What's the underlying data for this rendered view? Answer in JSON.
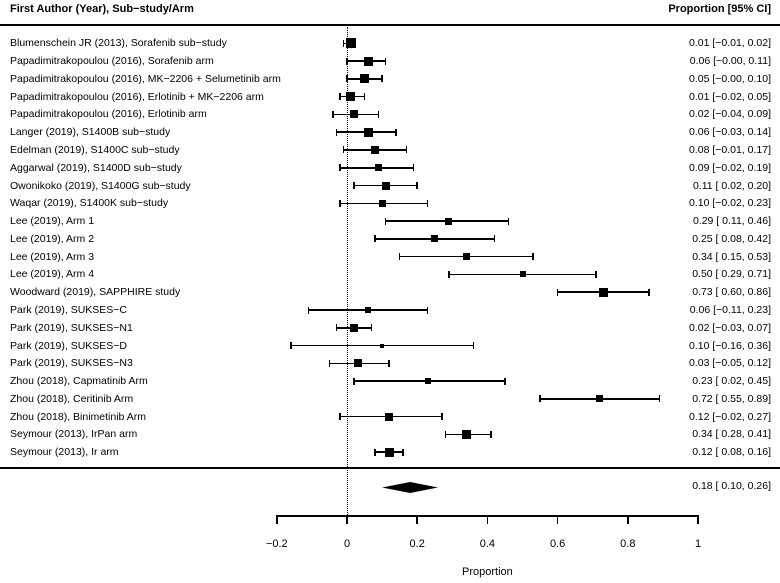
{
  "header": {
    "left": "First Author (Year), Sub−study/Arm",
    "right": "Proportion [95% CI]"
  },
  "colors": {
    "foreground": "#000000",
    "background": "#ffffff"
  },
  "chart_data": {
    "type": "forest",
    "title": "",
    "xlabel": "Proportion",
    "xlim": [
      -0.2,
      1
    ],
    "x_ticks": [
      -0.2,
      0,
      0.2,
      0.4,
      0.6,
      0.8,
      1
    ],
    "x_tick_labels": [
      "−0.2",
      "0",
      "0.2",
      "0.4",
      "0.6",
      "0.8",
      "1"
    ],
    "zero_reference_line": 0,
    "grid": false,
    "studies": [
      {
        "label": "Blumenschein JR (2013), Sorafenib sub−study",
        "est": 0.01,
        "lo": -0.01,
        "hi": 0.02,
        "text": "0.01 [−0.01, 0.02]",
        "size": 10
      },
      {
        "label": "Papadimitrakopoulou (2016), Sorafenib arm",
        "est": 0.06,
        "lo": 0.0,
        "hi": 0.11,
        "text": "0.06 [−0.00, 0.11]",
        "size": 9
      },
      {
        "label": "Papadimitrakopoulou (2016), MK−2206 + Selumetinib arm",
        "est": 0.05,
        "lo": 0.0,
        "hi": 0.1,
        "text": "0.05 [−0.00, 0.10]",
        "size": 9
      },
      {
        "label": "Papadimitrakopoulou (2016), Erlotinib + MK−2206 arm",
        "est": 0.01,
        "lo": -0.02,
        "hi": 0.05,
        "text": "0.01 [−0.02, 0.05]",
        "size": 9
      },
      {
        "label": "Papadimitrakopoulou (2016), Erlotinib arm",
        "est": 0.02,
        "lo": -0.04,
        "hi": 0.09,
        "text": "0.02 [−0.04, 0.09]",
        "size": 8
      },
      {
        "label": "Langer (2019), S1400B sub−study",
        "est": 0.06,
        "lo": -0.03,
        "hi": 0.14,
        "text": "0.06 [−0.03, 0.14]",
        "size": 9
      },
      {
        "label": "Edelman (2019), S1400C sub−study",
        "est": 0.08,
        "lo": -0.01,
        "hi": 0.17,
        "text": "0.08 [−0.01, 0.17]",
        "size": 8
      },
      {
        "label": "Aggarwal (2019), S1400D sub−study",
        "est": 0.09,
        "lo": -0.02,
        "hi": 0.19,
        "text": "0.09 [−0.02, 0.19]",
        "size": 7
      },
      {
        "label": "Owonikoko (2019), S1400G sub−study",
        "est": 0.11,
        "lo": 0.02,
        "hi": 0.2,
        "text": "0.11 [ 0.02, 0.20]",
        "size": 8
      },
      {
        "label": "Waqar (2019), S1400K sub−study",
        "est": 0.1,
        "lo": -0.02,
        "hi": 0.23,
        "text": "0.10 [−0.02, 0.23]",
        "size": 7
      },
      {
        "label": "Lee (2019), Arm 1",
        "est": 0.29,
        "lo": 0.11,
        "hi": 0.46,
        "text": "0.29 [ 0.11, 0.46]",
        "size": 7
      },
      {
        "label": "Lee (2019), Arm 2",
        "est": 0.25,
        "lo": 0.08,
        "hi": 0.42,
        "text": "0.25 [ 0.08, 0.42]",
        "size": 7
      },
      {
        "label": "Lee (2019), Arm 3",
        "est": 0.34,
        "lo": 0.15,
        "hi": 0.53,
        "text": "0.34 [ 0.15, 0.53]",
        "size": 7
      },
      {
        "label": "Lee (2019), Arm 4",
        "est": 0.5,
        "lo": 0.29,
        "hi": 0.71,
        "text": "0.50 [ 0.29, 0.71]",
        "size": 6
      },
      {
        "label": "Woodward (2019), SAPPHIRE study",
        "est": 0.73,
        "lo": 0.6,
        "hi": 0.86,
        "text": "0.73 [ 0.60, 0.86]",
        "size": 9
      },
      {
        "label": "Park (2019), SUKSES−C",
        "est": 0.06,
        "lo": -0.11,
        "hi": 0.23,
        "text": "0.06 [−0.11, 0.23]",
        "size": 6
      },
      {
        "label": "Park (2019), SUKSES−N1",
        "est": 0.02,
        "lo": -0.03,
        "hi": 0.07,
        "text": "0.02 [−0.03, 0.07]",
        "size": 8
      },
      {
        "label": "Park (2019), SUKSES−D",
        "est": 0.1,
        "lo": -0.16,
        "hi": 0.36,
        "text": "0.10 [−0.16, 0.36]",
        "size": 4
      },
      {
        "label": "Park (2019), SUKSES−N3",
        "est": 0.03,
        "lo": -0.05,
        "hi": 0.12,
        "text": "0.03 [−0.05, 0.12]",
        "size": 8
      },
      {
        "label": "Zhou (2018), Capmatinib Arm",
        "est": 0.23,
        "lo": 0.02,
        "hi": 0.45,
        "text": "0.23 [ 0.02, 0.45]",
        "size": 6
      },
      {
        "label": "Zhou (2018), Ceritinib Arm",
        "est": 0.72,
        "lo": 0.55,
        "hi": 0.89,
        "text": "0.72 [ 0.55, 0.89]",
        "size": 7
      },
      {
        "label": "Zhou (2018), Binimetinib Arm",
        "est": 0.12,
        "lo": -0.02,
        "hi": 0.27,
        "text": "0.12 [−0.02, 0.27]",
        "size": 8
      },
      {
        "label": "Seymour (2013), IrPan arm",
        "est": 0.34,
        "lo": 0.28,
        "hi": 0.41,
        "text": "0.34 [ 0.28, 0.41]",
        "size": 9
      },
      {
        "label": "Seymour (2013), Ir arm",
        "est": 0.12,
        "lo": 0.08,
        "hi": 0.16,
        "text": "0.12 [ 0.08, 0.16]",
        "size": 9
      }
    ],
    "summary": {
      "est": 0.18,
      "lo": 0.1,
      "hi": 0.26,
      "text": "0.18 [ 0.10, 0.26]"
    }
  }
}
